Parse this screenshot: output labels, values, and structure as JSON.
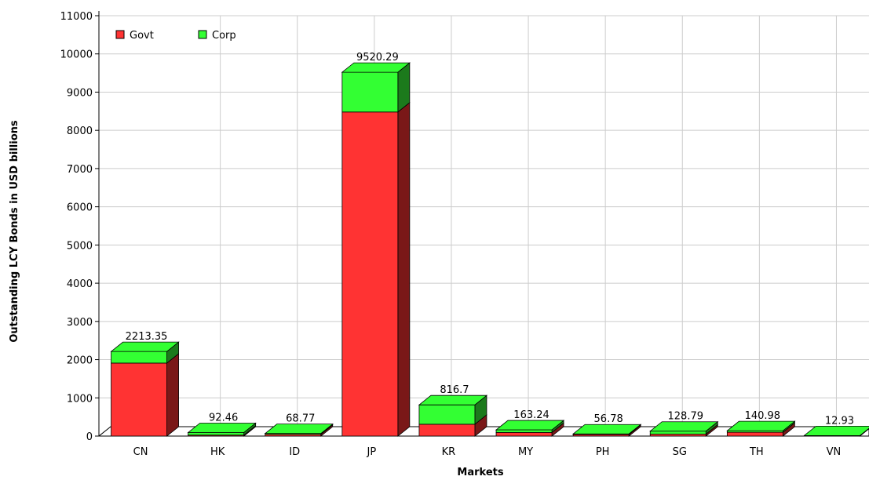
{
  "chart_data": {
    "type": "bar",
    "stacked": true,
    "three_d": true,
    "categories": [
      "CN",
      "HK",
      "ID",
      "JP",
      "KR",
      "MY",
      "PH",
      "SG",
      "TH",
      "VN"
    ],
    "series": [
      {
        "name": "Govt",
        "values": [
          1910,
          25,
          45,
          8480,
          310,
          95,
          40,
          50,
          100,
          8
        ]
      },
      {
        "name": "Corp",
        "values": [
          303.35,
          67.46,
          23.77,
          1040.29,
          506.7,
          68.24,
          16.78,
          78.79,
          40.98,
          4.93
        ]
      }
    ],
    "totals": [
      "2213.35",
      "92.46",
      "68.77",
      "9520.29",
      "816.7",
      "163.24",
      "56.78",
      "128.79",
      "140.98",
      "12.93"
    ],
    "title": "",
    "xlabel": "Markets",
    "ylabel": "Outstanding LCY Bonds in USD billions",
    "ylim": [
      0,
      11000
    ],
    "yticks": [
      0,
      1000,
      2000,
      3000,
      4000,
      5000,
      6000,
      7000,
      8000,
      9000,
      10000,
      11000
    ],
    "grid": true,
    "legend_position": "top-left",
    "colors": {
      "govt": "#ff3333",
      "govt_side": "#7a1818",
      "corp": "#33ff33",
      "corp_side": "#1c7a1c",
      "grid": "#cccccc",
      "axis": "#000000"
    }
  }
}
